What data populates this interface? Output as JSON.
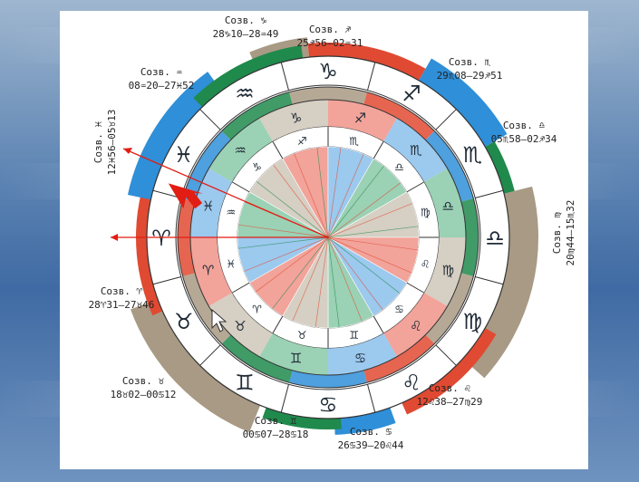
{
  "constellation_labels": [
    {
      "name": "Созв. ♑",
      "range": "28♑10–28♒49"
    },
    {
      "name": "Созв. ♐",
      "range": "25♐56–02♒31"
    },
    {
      "name": "Созв. ♏",
      "range": "29♏08–29♐51"
    },
    {
      "name": "Созв. ♎",
      "range": "05♏58–02♐34"
    },
    {
      "name": "Созв. ♍",
      "range": "20♍44–15♏32"
    },
    {
      "name": "Созв. ♌",
      "range": "12♌38–27♍29"
    },
    {
      "name": "Созв. ♋",
      "range": "26♋39–20♌44"
    },
    {
      "name": "Созв. ♊",
      "range": "00♋07–28♋18"
    },
    {
      "name": "Созв. ♉",
      "range": "18♉02–00♋12"
    },
    {
      "name": "Созв. ♈",
      "range": "28♈31–27♉46"
    },
    {
      "name": "Созв. ♓",
      "range": "12♓56–05♉13"
    },
    {
      "name": "Созв. ♒",
      "range": "08♒20–27♓52"
    }
  ],
  "outer_ring_signs": [
    "♑",
    "♐",
    "♏",
    "♎",
    "♍",
    "♌",
    "♋",
    "♊",
    "♉",
    "♈",
    "♓",
    "♒"
  ],
  "middle_ring_signs": [
    "♑",
    "♐",
    "♏",
    "♎",
    "♍",
    "♌",
    "♋",
    "♊",
    "♉",
    "♈",
    "♓",
    "♒"
  ],
  "inner_ring_signs": [
    "♐",
    "♏",
    "♎",
    "♍",
    "♌",
    "♋",
    "♊",
    "♉",
    "♈",
    "♓",
    "♒",
    "♑"
  ],
  "colors": {
    "fire": "#e04a32",
    "air": "#2f8fd8",
    "earth": "#a89a84",
    "water": "#1f8a4c",
    "fire_light": "#f2a39a",
    "air_light": "#9cc9ee",
    "earth_light": "#d6cfc3",
    "water_light": "#9bd1b4",
    "pointer": "#e21d14"
  },
  "elements_cycle": [
    "earth",
    "fire",
    "air",
    "water"
  ]
}
